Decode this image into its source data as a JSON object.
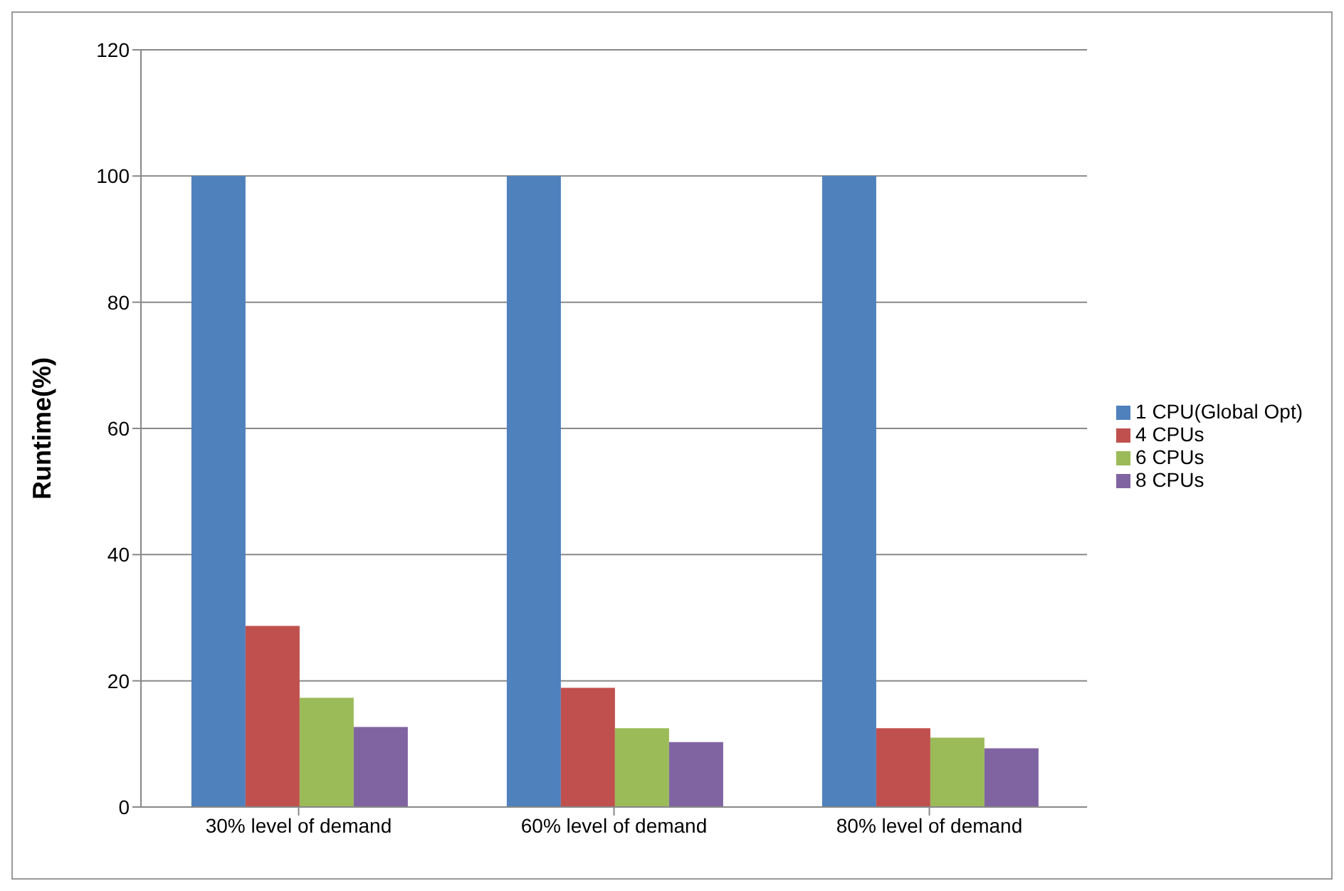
{
  "chart_data": {
    "type": "bar",
    "ylabel": "Runtime(%)",
    "categories": [
      "30% level of demand",
      "60% level of demand",
      "80% level of demand"
    ],
    "series": [
      {
        "name": "1 CPU(Global Opt)",
        "color": "#4f81bd",
        "values": [
          100,
          100,
          100
        ]
      },
      {
        "name": "4 CPUs",
        "color": "#c0504d",
        "values": [
          28.7,
          18.9,
          12.5
        ]
      },
      {
        "name": "6 CPUs",
        "color": "#9bbb59",
        "values": [
          17.3,
          12.5,
          11.0
        ]
      },
      {
        "name": "8 CPUs",
        "color": "#8064a2",
        "values": [
          12.7,
          10.3,
          9.3
        ]
      }
    ],
    "ylim": [
      0,
      120
    ],
    "yticks": [
      0,
      20,
      40,
      60,
      80,
      100,
      120
    ],
    "grid": "y",
    "legend": "right"
  }
}
